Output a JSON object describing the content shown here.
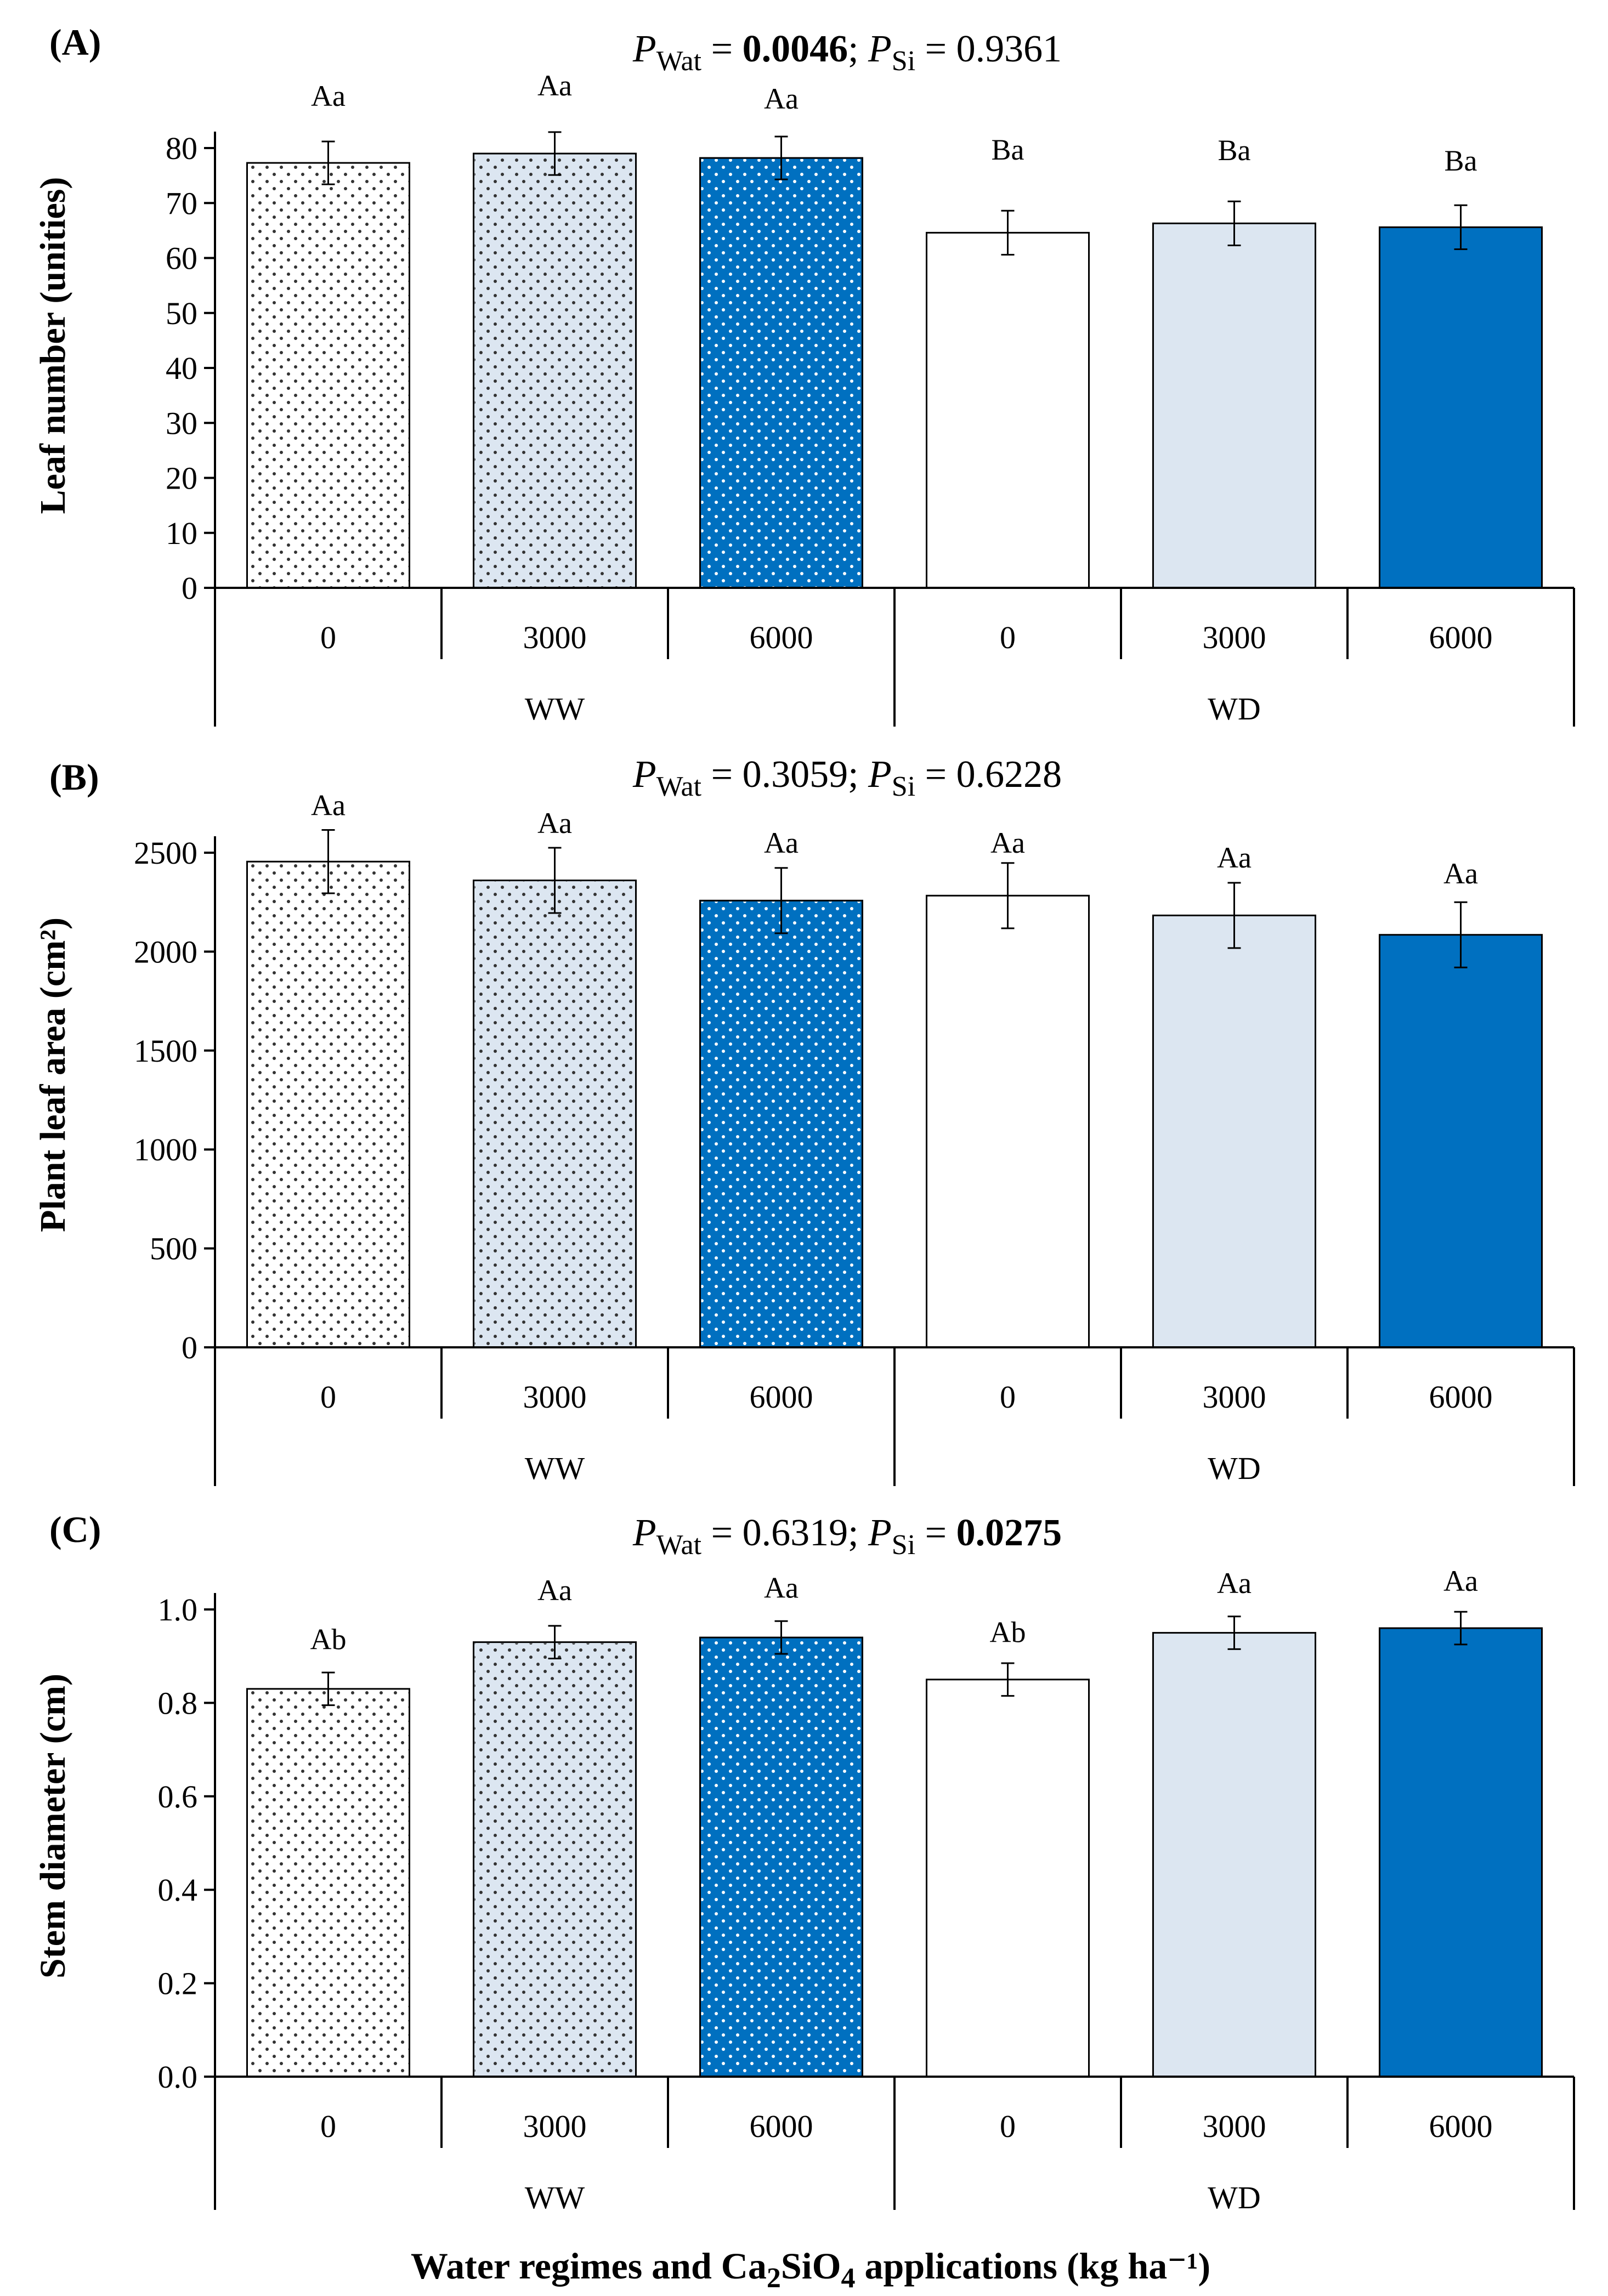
{
  "chart_data": [
    {
      "type": "bar",
      "panel_label": "(A)",
      "ylabel": "Leaf number (unities)",
      "ylim": [
        0,
        80
      ],
      "yticks": [
        0,
        10,
        20,
        30,
        40,
        50,
        60,
        70,
        80
      ],
      "p_wat_label": "P",
      "p_wat_sub": "Wat",
      "p_wat_value": "0.0046",
      "p_wat_bold": true,
      "p_si_label": "P",
      "p_si_sub": "Si",
      "p_si_value": "0.9361",
      "p_si_bold": false,
      "categories": [
        "0",
        "3000",
        "6000",
        "0",
        "3000",
        "6000"
      ],
      "groups": [
        "WW",
        "WD"
      ],
      "values": [
        77.3,
        79.0,
        78.2,
        64.6,
        66.3,
        65.6
      ],
      "errors": [
        3.9,
        3.9,
        3.9,
        4.0,
        4.0,
        4.0
      ],
      "letters": [
        "Aa",
        "Aa",
        "Aa",
        "Ba",
        "Ba",
        "Ba"
      ],
      "letter_values": [
        87.7,
        89.6,
        87.2,
        77.9,
        77.8,
        75.9
      ]
    },
    {
      "type": "bar",
      "panel_label": "(B)",
      "ylabel": "Plant leaf area (cm²)",
      "ylim": [
        0,
        2500
      ],
      "yticks": [
        0,
        500,
        1000,
        1500,
        2000,
        2500
      ],
      "p_wat_label": "P",
      "p_wat_sub": "Wat",
      "p_wat_value": "0.3059",
      "p_wat_bold": false,
      "p_si_label": "P",
      "p_si_sub": "Si",
      "p_si_value": "0.6228",
      "p_si_bold": false,
      "categories": [
        "0",
        "3000",
        "6000",
        "0",
        "3000",
        "6000"
      ],
      "groups": [
        "WW",
        "WD"
      ],
      "values": [
        2455,
        2360,
        2258,
        2283,
        2183,
        2085
      ],
      "errors": [
        160,
        165,
        165,
        165,
        165,
        165
      ],
      "letters": [
        "Aa",
        "Aa",
        "Aa",
        "Aa",
        "Aa",
        "Aa"
      ],
      "letter_values": [
        2690,
        2600,
        2500,
        2500,
        2425,
        2345
      ]
    },
    {
      "type": "bar",
      "panel_label": "(C)",
      "ylabel": "Stem diameter (cm)",
      "ylim": [
        0,
        1.0
      ],
      "yticks": [
        "0.0",
        "0.2",
        "0.4",
        "0.6",
        "0.8",
        "1.0"
      ],
      "p_wat_label": "P",
      "p_wat_sub": "Wat",
      "p_wat_value": "0.6319",
      "p_wat_bold": false,
      "p_si_label": "P",
      "p_si_sub": "Si",
      "p_si_value": "0.0275",
      "p_si_bold": true,
      "categories": [
        "0",
        "3000",
        "6000",
        "0",
        "3000",
        "6000"
      ],
      "groups": [
        "WW",
        "WD"
      ],
      "values": [
        0.83,
        0.93,
        0.94,
        0.85,
        0.95,
        0.96
      ],
      "errors": [
        0.035,
        0.035,
        0.035,
        0.035,
        0.035,
        0.035
      ],
      "letters": [
        "Ab",
        "Aa",
        "Aa",
        "Ab",
        "Aa",
        "Aa"
      ],
      "letter_values": [
        0.915,
        1.02,
        1.025,
        0.93,
        1.035,
        1.04
      ]
    }
  ],
  "x_title_prefix": "Water regimes and Ca",
  "x_title_sub1": "2",
  "x_title_mid": "SiO",
  "x_title_sub2": "4",
  "x_title_suffix": " applications (kg ha⁻¹)",
  "colors": {
    "dark_blue": "#0070c0",
    "light_blue": "#dce6f1",
    "white": "#ffffff",
    "dot_dark": "#000000",
    "dot_light": "#ffffff",
    "axis": "#000000"
  }
}
